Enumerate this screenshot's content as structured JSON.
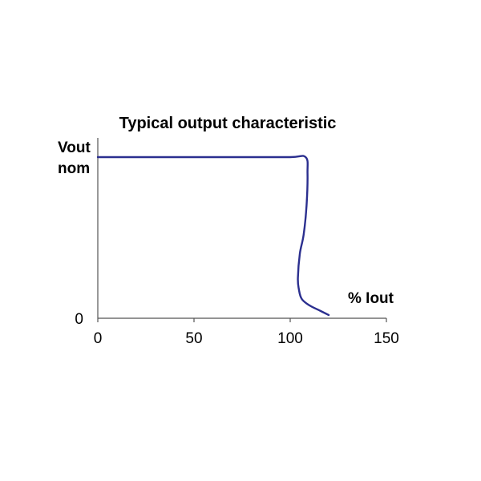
{
  "chart_data": {
    "type": "line",
    "title": "Typical output characteristic",
    "xlabel": "% Iout",
    "ylabel_line1": "Vout",
    "ylabel_line2": "nom",
    "xlim": [
      0,
      150
    ],
    "ylim": [
      0,
      1
    ],
    "x_ticks": [
      0,
      50,
      100,
      150
    ],
    "y_tick_labels": [
      {
        "value": 0,
        "label": "0"
      }
    ],
    "grid": false,
    "series": [
      {
        "color": "#2b2f8f",
        "points": [
          [
            0,
            1.0
          ],
          [
            25,
            1.0
          ],
          [
            50,
            1.0
          ],
          [
            75,
            1.0
          ],
          [
            100,
            1.0
          ],
          [
            108,
            1.0
          ],
          [
            109,
            0.9
          ],
          [
            108.5,
            0.7
          ],
          [
            107,
            0.52
          ],
          [
            105,
            0.4
          ],
          [
            104,
            0.25
          ],
          [
            104.5,
            0.18
          ],
          [
            106,
            0.12
          ],
          [
            110,
            0.08
          ],
          [
            115,
            0.05
          ],
          [
            120,
            0.02
          ]
        ]
      }
    ]
  }
}
